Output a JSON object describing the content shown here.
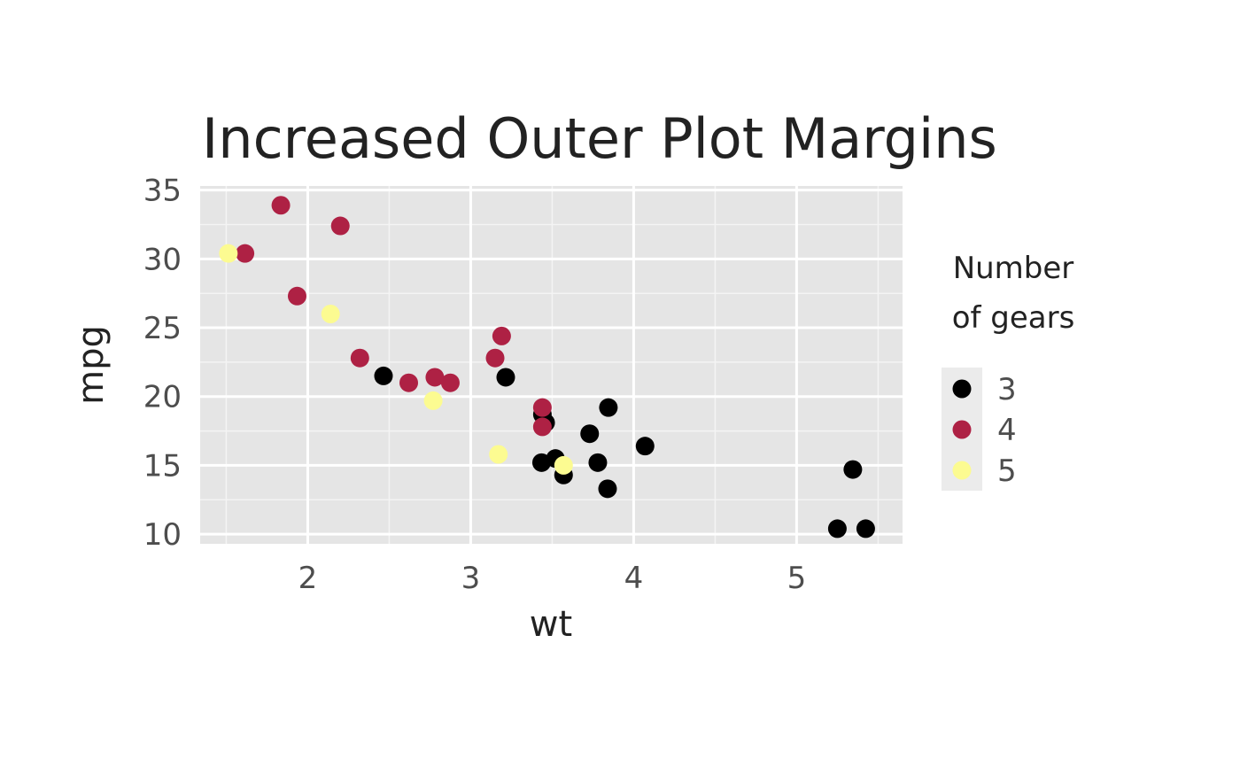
{
  "chart_data": {
    "type": "scatter",
    "title": "Increased Outer Plot Margins",
    "xlabel": "wt",
    "ylabel": "mpg",
    "xlim": [
      1.34,
      5.65
    ],
    "ylim": [
      9.3,
      35.3
    ],
    "x_ticks": [
      2,
      3,
      4,
      5
    ],
    "y_ticks": [
      10,
      15,
      20,
      25,
      30,
      35
    ],
    "grid": true,
    "legend": {
      "title_lines": [
        "Number",
        "of gears"
      ],
      "placement": "right"
    },
    "series": [
      {
        "name": "3",
        "color": "#000000",
        "points": [
          [
            2.465,
            21.5
          ],
          [
            3.215,
            21.4
          ],
          [
            3.44,
            18.7
          ],
          [
            3.46,
            18.1
          ],
          [
            3.57,
            14.3
          ],
          [
            3.52,
            15.5
          ],
          [
            3.435,
            15.2
          ],
          [
            3.84,
            13.3
          ],
          [
            3.845,
            19.2
          ],
          [
            4.07,
            16.4
          ],
          [
            3.73,
            17.3
          ],
          [
            3.78,
            15.2
          ],
          [
            5.25,
            10.4
          ],
          [
            5.424,
            10.4
          ],
          [
            5.345,
            14.7
          ]
        ]
      },
      {
        "name": "4",
        "color": "#ae2144",
        "points": [
          [
            2.62,
            21.0
          ],
          [
            2.875,
            21.0
          ],
          [
            2.32,
            22.8
          ],
          [
            3.19,
            24.4
          ],
          [
            3.15,
            22.8
          ],
          [
            3.44,
            19.2
          ],
          [
            3.44,
            17.8
          ],
          [
            2.2,
            32.4
          ],
          [
            1.615,
            30.4
          ],
          [
            1.835,
            33.9
          ],
          [
            1.935,
            27.3
          ],
          [
            2.78,
            21.4
          ]
        ]
      },
      {
        "name": "5",
        "color": "#fcfb91",
        "points": [
          [
            2.14,
            26.0
          ],
          [
            1.513,
            30.4
          ],
          [
            3.17,
            15.8
          ],
          [
            2.77,
            19.7
          ],
          [
            3.57,
            15.0
          ]
        ]
      }
    ]
  }
}
